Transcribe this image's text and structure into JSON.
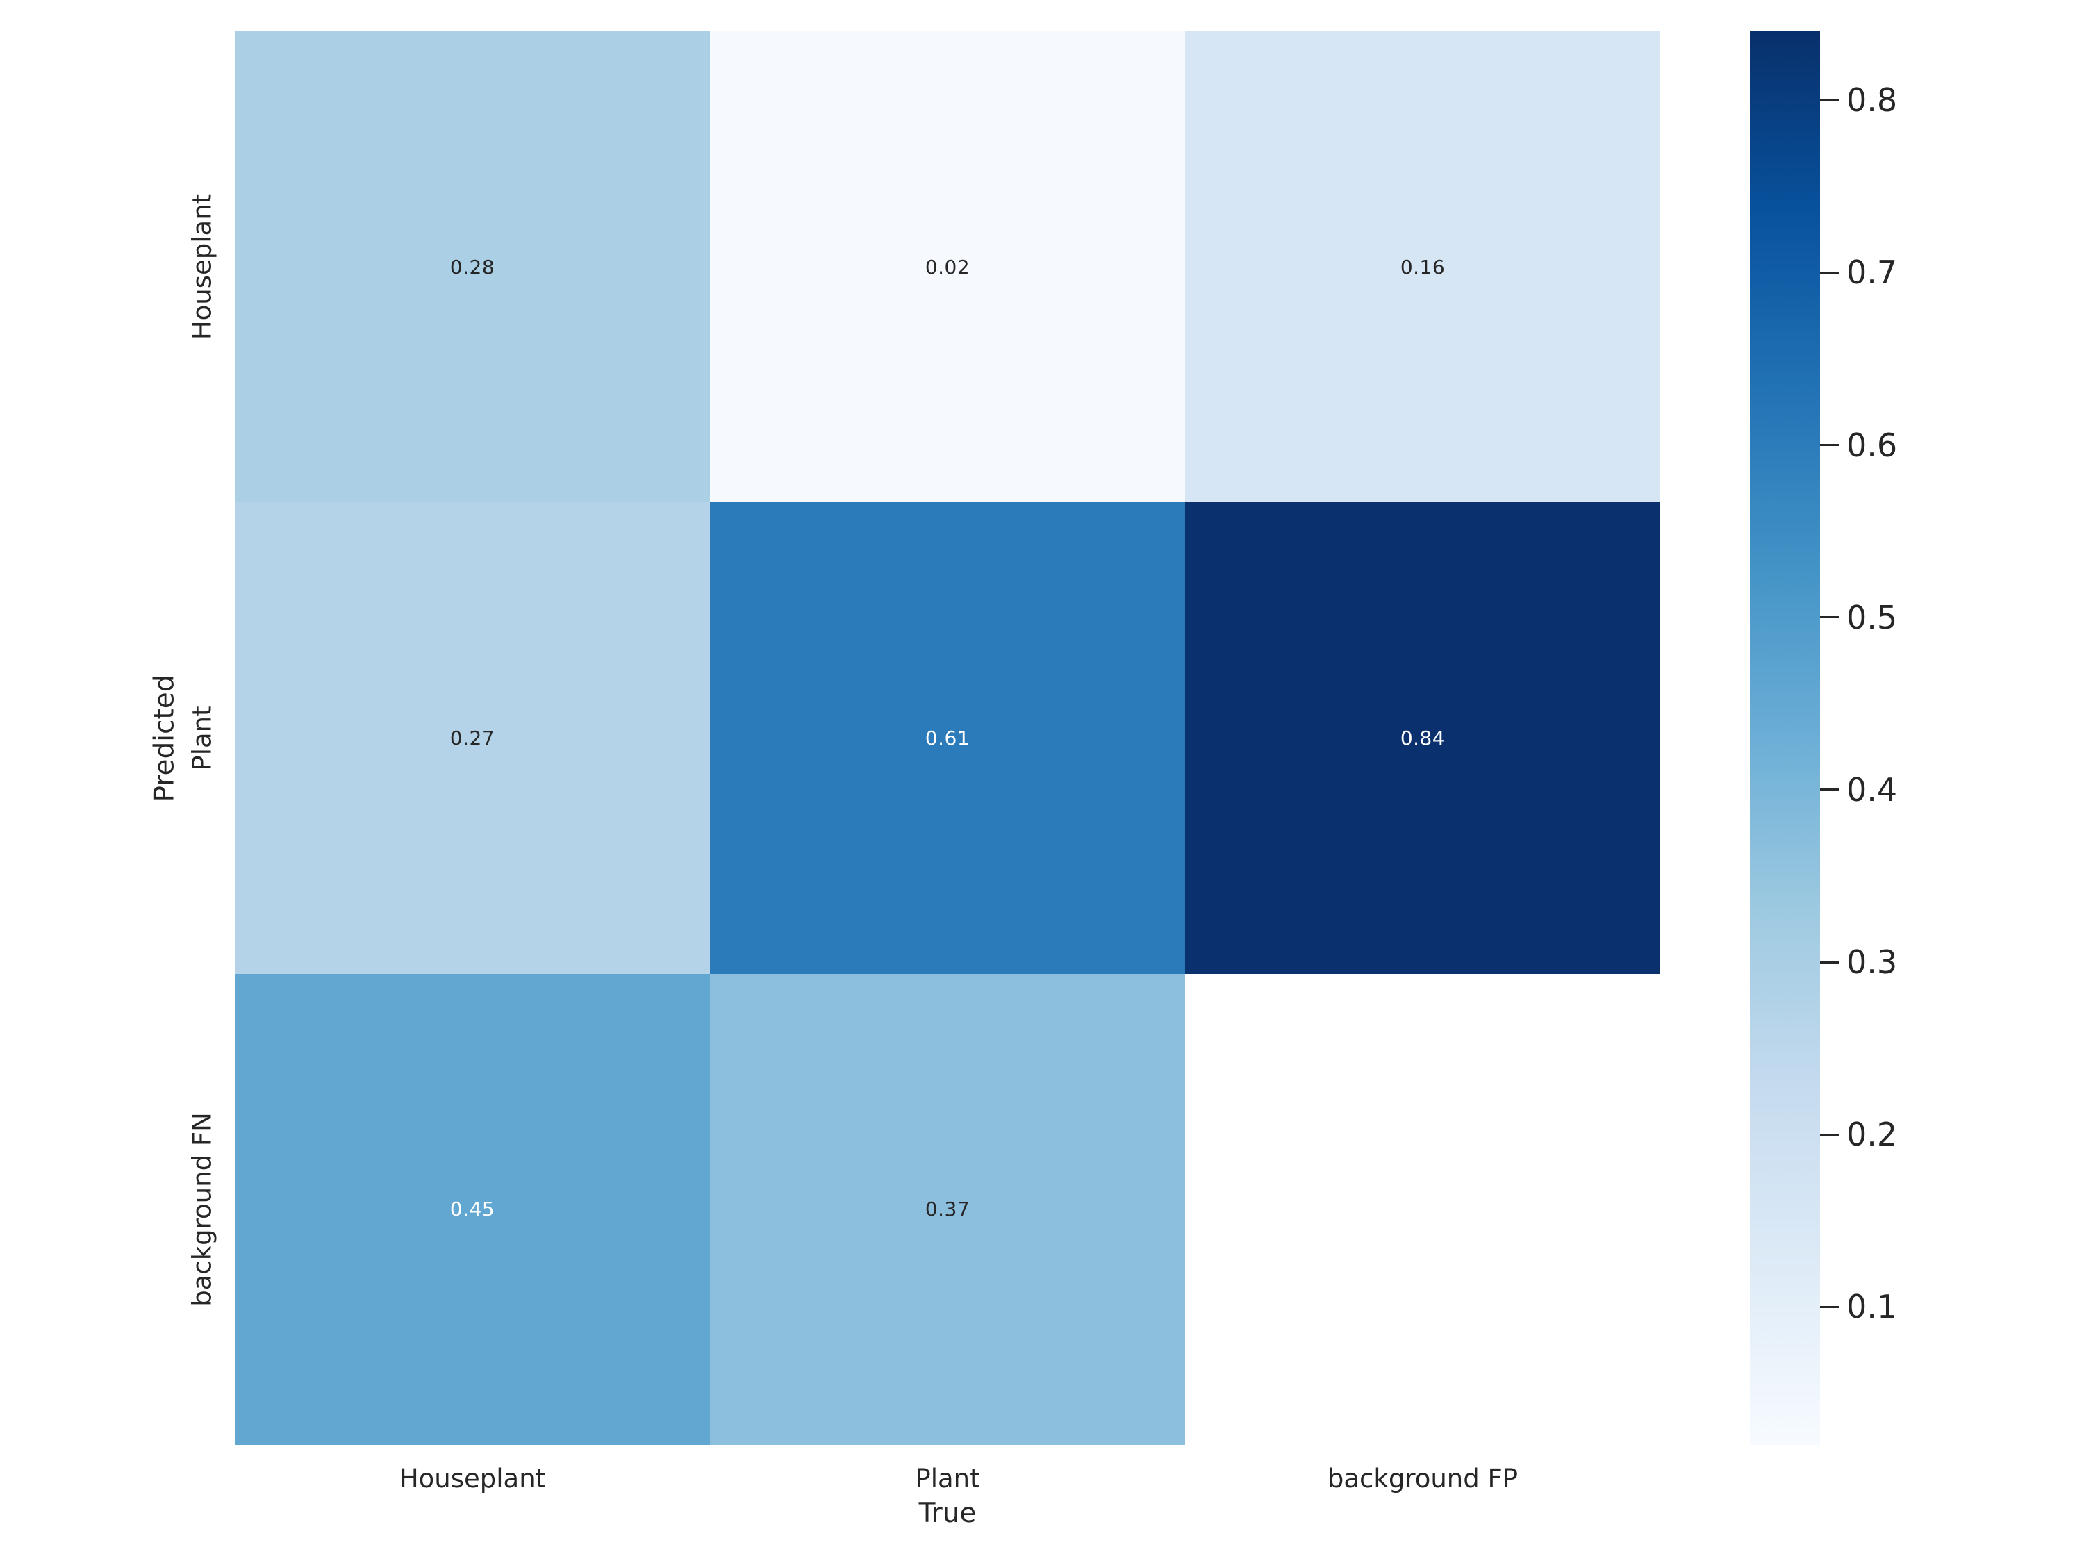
{
  "chart_data": {
    "type": "heatmap",
    "xlabel": "True",
    "ylabel": "Predicted",
    "x_categories": [
      "Houseplant",
      "Plant",
      "background FP"
    ],
    "y_categories": [
      "Houseplant",
      "Plant",
      "background FN"
    ],
    "matrix": [
      [
        0.28,
        0.02,
        0.16
      ],
      [
        0.27,
        0.61,
        0.84
      ],
      [
        0.45,
        0.37,
        null
      ]
    ],
    "annotations": [
      [
        "0.28",
        "0.02",
        "0.16"
      ],
      [
        "0.27",
        "0.61",
        "0.84"
      ],
      [
        "0.45",
        "0.37",
        ""
      ]
    ],
    "cell_colors": [
      [
        "#abcfe5",
        "#f6fafe",
        "#d6e6f4"
      ],
      [
        "#b4d3e9",
        "#2b7bba",
        "#0a316d"
      ],
      [
        "#61a7d2",
        "#8cbfdd",
        "#ffffff"
      ]
    ],
    "annotation_colors": [
      [
        "#262626",
        "#262626",
        "#262626"
      ],
      [
        "#262626",
        "#ffffff",
        "#ffffff"
      ],
      [
        "#ffffff",
        "#262626",
        ""
      ]
    ],
    "colormap": "Blues",
    "vmin": 0.02,
    "vmax": 0.84,
    "grid": false,
    "colorbar": {
      "position": "right",
      "tick_values": [
        0.8,
        0.7,
        0.6,
        0.5,
        0.4,
        0.3,
        0.2,
        0.1
      ],
      "tick_labels": [
        "0.8",
        "0.7",
        "0.6",
        "0.5",
        "0.4",
        "0.3",
        "0.2",
        "0.1"
      ]
    }
  }
}
